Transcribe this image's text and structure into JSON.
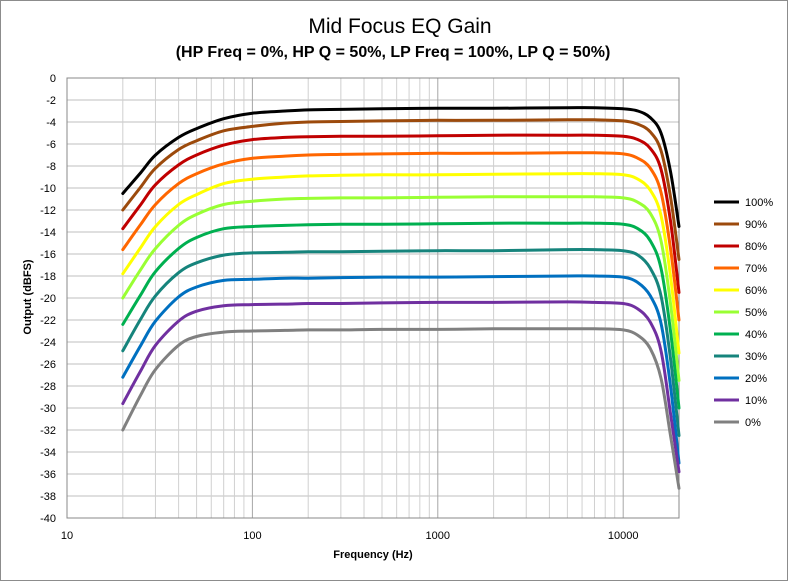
{
  "chart_data": {
    "type": "line",
    "title": "Mid Focus EQ Gain",
    "subtitle": "(HP Freq = 0%, HP Q = 50%, LP Freq = 100%, LP Q = 50%)",
    "xlabel": "Frequency (Hz)",
    "ylabel": "Output (dBFS)",
    "x_scale": "log",
    "xlim": [
      10,
      20000
    ],
    "ylim": [
      -40,
      0
    ],
    "y_step": 2,
    "x_tick_labels": [
      "10",
      "100",
      "1000",
      "10000"
    ],
    "y_tick_labels": [
      "0",
      "-2",
      "-4",
      "-6",
      "-8",
      "-10",
      "-12",
      "-14",
      "-16",
      "-18",
      "-20",
      "-22",
      "-24",
      "-26",
      "-28",
      "-30",
      "-32",
      "-34",
      "-36",
      "-38",
      "-40"
    ],
    "grid": true,
    "legend_position": "right",
    "x": [
      20,
      25,
      30,
      40,
      50,
      70,
      100,
      150,
      200,
      300,
      500,
      1000,
      2000,
      5000,
      7000,
      10000,
      12000,
      14000,
      16000,
      18000,
      20000
    ],
    "series": [
      {
        "name": "100%",
        "color": "#000000",
        "values": [
          -10.5,
          -8.6,
          -7.0,
          -5.4,
          -4.6,
          -3.7,
          -3.2,
          -3.0,
          -2.9,
          -2.85,
          -2.8,
          -2.75,
          -2.75,
          -2.7,
          -2.7,
          -2.8,
          -3.0,
          -3.6,
          -5.0,
          -8.5,
          -13.5
        ]
      },
      {
        "name": "90%",
        "color": "#9c4a0c",
        "values": [
          -12.0,
          -9.9,
          -8.2,
          -6.5,
          -5.7,
          -4.8,
          -4.4,
          -4.1,
          -4.0,
          -3.95,
          -3.9,
          -3.85,
          -3.85,
          -3.8,
          -3.8,
          -3.9,
          -4.2,
          -4.9,
          -6.6,
          -10.8,
          -16.5
        ]
      },
      {
        "name": "80%",
        "color": "#c00000",
        "values": [
          -13.7,
          -11.5,
          -9.7,
          -7.9,
          -7.0,
          -6.1,
          -5.6,
          -5.4,
          -5.35,
          -5.3,
          -5.3,
          -5.25,
          -5.2,
          -5.2,
          -5.2,
          -5.3,
          -5.6,
          -6.4,
          -8.3,
          -13.0,
          -19.5
        ]
      },
      {
        "name": "70%",
        "color": "#ff6600",
        "values": [
          -15.6,
          -13.3,
          -11.5,
          -9.6,
          -8.7,
          -7.8,
          -7.3,
          -7.1,
          -7.0,
          -6.95,
          -6.9,
          -6.85,
          -6.85,
          -6.8,
          -6.8,
          -6.9,
          -7.3,
          -8.2,
          -10.4,
          -15.5,
          -22.0
        ]
      },
      {
        "name": "60%",
        "color": "#ffff00",
        "values": [
          -17.8,
          -15.4,
          -13.5,
          -11.5,
          -10.6,
          -9.6,
          -9.2,
          -9.0,
          -8.9,
          -8.85,
          -8.8,
          -8.8,
          -8.75,
          -8.7,
          -8.7,
          -8.8,
          -9.2,
          -10.2,
          -12.5,
          -18.0,
          -25.0
        ]
      },
      {
        "name": "50%",
        "color": "#99ff33",
        "values": [
          -20.0,
          -17.4,
          -15.5,
          -13.4,
          -12.4,
          -11.5,
          -11.2,
          -11.0,
          -10.95,
          -10.9,
          -10.9,
          -10.85,
          -10.8,
          -10.8,
          -10.8,
          -10.9,
          -11.3,
          -12.3,
          -14.8,
          -20.5,
          -27.5
        ]
      },
      {
        "name": "40%",
        "color": "#00b050",
        "values": [
          -22.4,
          -19.7,
          -17.6,
          -15.5,
          -14.5,
          -13.7,
          -13.5,
          -13.4,
          -13.35,
          -13.3,
          -13.3,
          -13.25,
          -13.2,
          -13.2,
          -13.2,
          -13.3,
          -13.7,
          -14.8,
          -17.3,
          -23.0,
          -30.0
        ]
      },
      {
        "name": "30%",
        "color": "#16847c",
        "values": [
          -24.8,
          -21.9,
          -19.8,
          -17.7,
          -16.8,
          -16.1,
          -15.9,
          -15.85,
          -15.8,
          -15.8,
          -15.75,
          -15.7,
          -15.7,
          -15.6,
          -15.6,
          -15.7,
          -16.1,
          -17.3,
          -19.8,
          -25.5,
          -32.5
        ]
      },
      {
        "name": "20%",
        "color": "#0070c0",
        "values": [
          -27.2,
          -24.3,
          -22.1,
          -19.9,
          -19.0,
          -18.4,
          -18.3,
          -18.2,
          -18.2,
          -18.15,
          -18.1,
          -18.1,
          -18.05,
          -18.0,
          -18.0,
          -18.1,
          -18.6,
          -19.8,
          -22.3,
          -28.0,
          -35.0
        ]
      },
      {
        "name": "10%",
        "color": "#7030a0",
        "values": [
          -29.6,
          -26.6,
          -24.3,
          -22.1,
          -21.2,
          -20.7,
          -20.6,
          -20.55,
          -20.5,
          -20.5,
          -20.45,
          -20.4,
          -20.4,
          -20.35,
          -20.4,
          -20.5,
          -21.0,
          -22.2,
          -24.8,
          -30.5,
          -35.8
        ]
      },
      {
        "name": "0%",
        "color": "#808080",
        "values": [
          -32.0,
          -28.8,
          -26.5,
          -24.3,
          -23.5,
          -23.1,
          -23.0,
          -22.95,
          -22.9,
          -22.9,
          -22.85,
          -22.85,
          -22.8,
          -22.8,
          -22.8,
          -22.9,
          -23.4,
          -24.6,
          -27.3,
          -32.5,
          -37.3
        ]
      }
    ]
  }
}
